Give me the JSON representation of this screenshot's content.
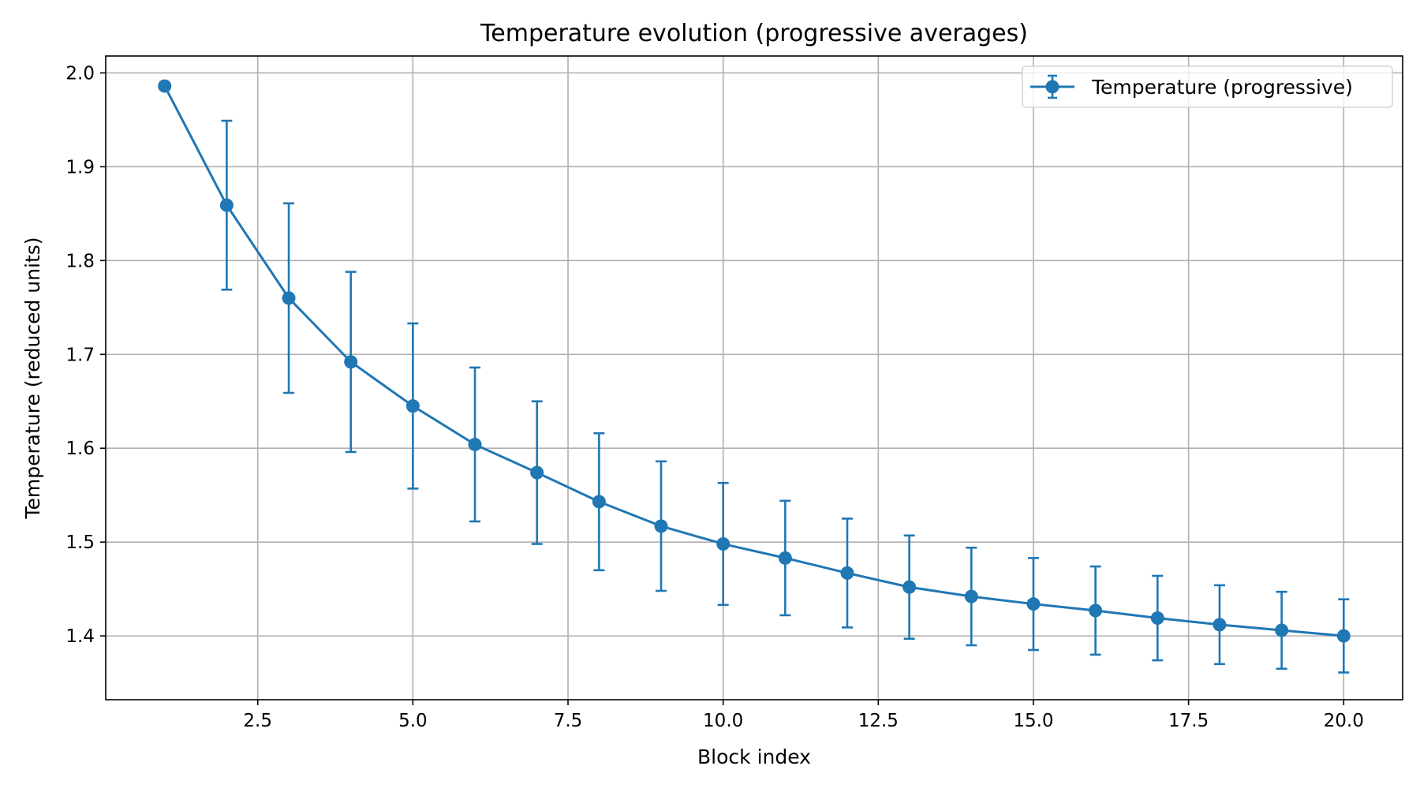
{
  "chart_data": {
    "type": "line",
    "title": "Temperature evolution (progressive averages)",
    "xlabel": "Block index",
    "ylabel": "Temperature (reduced units)",
    "xlim": [
      0.05,
      20.95
    ],
    "ylim": [
      1.332,
      2.018
    ],
    "x_ticks": [
      2.5,
      5.0,
      7.5,
      10.0,
      12.5,
      15.0,
      17.5,
      20.0
    ],
    "x_tick_labels": [
      "2.5",
      "5.0",
      "7.5",
      "10.0",
      "12.5",
      "15.0",
      "17.5",
      "20.0"
    ],
    "y_ticks": [
      1.4,
      1.5,
      1.6,
      1.7,
      1.8,
      1.9,
      2.0
    ],
    "y_tick_labels": [
      "1.4",
      "1.5",
      "1.6",
      "1.7",
      "1.8",
      "1.9",
      "2.0"
    ],
    "grid": true,
    "legend_position": "top-right",
    "series": [
      {
        "name": "Temperature (progressive)",
        "color": "#1f77b4",
        "marker": "circle",
        "x": [
          1,
          2,
          3,
          4,
          5,
          6,
          7,
          8,
          9,
          10,
          11,
          12,
          13,
          14,
          15,
          16,
          17,
          18,
          19,
          20
        ],
        "y": [
          1.986,
          1.859,
          1.76,
          1.692,
          1.645,
          1.604,
          1.574,
          1.543,
          1.517,
          1.498,
          1.483,
          1.467,
          1.452,
          1.442,
          1.434,
          1.427,
          1.419,
          1.412,
          1.406,
          1.4
        ],
        "error": [
          0.0,
          0.09,
          0.101,
          0.096,
          0.088,
          0.082,
          0.076,
          0.073,
          0.069,
          0.065,
          0.061,
          0.058,
          0.055,
          0.052,
          0.049,
          0.047,
          0.045,
          0.042,
          0.041,
          0.039
        ]
      }
    ]
  }
}
